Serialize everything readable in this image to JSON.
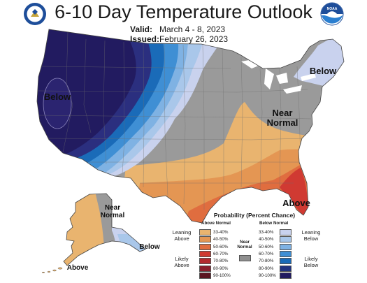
{
  "header": {
    "title": "6-10 Day Temperature Outlook",
    "valid_label": "Valid:",
    "valid_value": "March 4 - 8, 2023",
    "issued_label": "Issued:",
    "issued_value": "February 26, 2023"
  },
  "logos": {
    "left": "noaa-commerce-seal",
    "right_text": "NOAA"
  },
  "map_labels": {
    "below_west": "Below",
    "below_northeast": "Below",
    "near_normal_east": "Near\nNormal",
    "above_southeast": "Above",
    "near_normal_alaska": "Near\nNormal",
    "below_alaska": "Below",
    "above_alaska": "Above"
  },
  "legend": {
    "title": "Probability (Percent Chance)",
    "above_header": "Above Normal",
    "below_header": "Below Normal",
    "near_normal": "Near\nNormal",
    "leaning_above": "Leaning\nAbove",
    "likely_above": "Likely\nAbove",
    "leaning_below": "Leaning\nBelow",
    "likely_below": "Likely\nBelow",
    "ranges": [
      "33-40%",
      "40-50%",
      "50-60%",
      "60-70%",
      "70-80%",
      "80-90%",
      "90-100%"
    ],
    "above_colors": [
      "#e9b46f",
      "#e49653",
      "#e06d3f",
      "#d03a32",
      "#b32a2f",
      "#8a1e2c",
      "#5a1420"
    ],
    "below_colors": [
      "#c9d2ee",
      "#a9c7ea",
      "#7fb2e3",
      "#3f8fd4",
      "#1a6bb8",
      "#22337f",
      "#221b60"
    ],
    "near_color": "#8f8f8f"
  }
}
